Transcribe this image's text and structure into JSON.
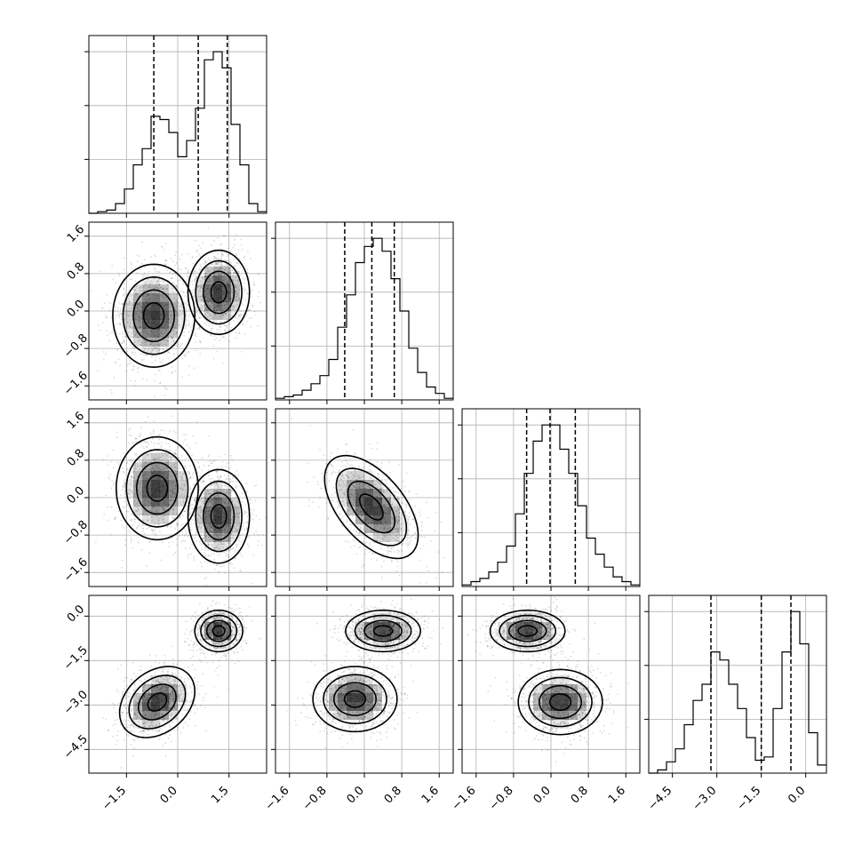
{
  "chart_data": {
    "type": "corner",
    "n_params": 4,
    "parameters": [
      {
        "index": 0,
        "range": [
          -2.6,
          2.6
        ],
        "ticks": [
          -1.5,
          0.0,
          1.5
        ],
        "tick_labels": [
          "−1.5",
          "0.0",
          "1.5"
        ],
        "quantiles": [
          -0.7,
          0.6,
          1.45
        ]
      },
      {
        "index": 1,
        "range": [
          -1.9,
          1.9
        ],
        "ticks": [
          -1.6,
          -0.8,
          0.0,
          0.8,
          1.6
        ],
        "tick_labels": [
          "−1.6",
          "−0.8",
          "0.0",
          "0.8",
          "1.6"
        ],
        "quantiles": [
          -0.42,
          0.16,
          0.64
        ]
      },
      {
        "index": 2,
        "range": [
          -1.9,
          1.9
        ],
        "ticks": [
          -1.6,
          -0.8,
          0.0,
          0.8,
          1.6
        ],
        "tick_labels": [
          "−1.6",
          "−0.8",
          "0.0",
          "0.8",
          "1.6"
        ],
        "quantiles": [
          -0.52,
          -0.02,
          0.52
        ]
      },
      {
        "index": 3,
        "range": [
          -5.3,
          0.7
        ],
        "ticks": [
          -4.5,
          -3.0,
          -1.5,
          0.0
        ],
        "tick_labels": [
          "−4.5",
          "−3.0",
          "−1.5",
          "0.0"
        ],
        "quantiles": [
          -3.2,
          -1.5,
          -0.5
        ]
      }
    ],
    "histograms": [
      {
        "param": 0,
        "bin_edges_from": -2.6,
        "bin_width": 0.26,
        "counts": [
          0,
          1,
          2,
          6,
          15,
          30,
          40,
          60,
          58,
          50,
          35,
          45,
          65,
          95,
          100,
          90,
          55,
          30,
          6,
          1
        ]
      },
      {
        "param": 1,
        "bin_edges_from": -1.9,
        "bin_width": 0.19,
        "counts": [
          1,
          2,
          3,
          6,
          10,
          15,
          25,
          45,
          65,
          85,
          95,
          100,
          92,
          75,
          55,
          32,
          17,
          8,
          4,
          1
        ]
      },
      {
        "param": 2,
        "bin_edges_from": -1.9,
        "bin_width": 0.19,
        "counts": [
          1,
          3,
          5,
          9,
          15,
          25,
          45,
          70,
          90,
          100,
          100,
          85,
          70,
          50,
          30,
          20,
          12,
          6,
          3,
          1
        ]
      },
      {
        "param": 3,
        "bin_edges_from": -5.3,
        "bin_width": 0.3,
        "counts": [
          0,
          2,
          7,
          15,
          30,
          45,
          55,
          75,
          70,
          55,
          40,
          22,
          8,
          10,
          40,
          75,
          100,
          80,
          25,
          5
        ]
      }
    ],
    "pair_panels": [
      {
        "x_param": 0,
        "y_param": 1,
        "modes": [
          {
            "center": [
              -0.7,
              -0.1
            ],
            "sigma": [
              0.6,
              0.55
            ],
            "rho": 0.0
          },
          {
            "center": [
              1.2,
              0.4
            ],
            "sigma": [
              0.45,
              0.45
            ],
            "rho": 0.0
          }
        ]
      },
      {
        "x_param": 0,
        "y_param": 2,
        "modes": [
          {
            "center": [
              -0.6,
              0.2
            ],
            "sigma": [
              0.6,
              0.55
            ],
            "rho": 0.0
          },
          {
            "center": [
              1.2,
              -0.4
            ],
            "sigma": [
              0.45,
              0.5
            ],
            "rho": 0.0
          }
        ]
      },
      {
        "x_param": 1,
        "y_param": 2,
        "modes": [
          {
            "center": [
              0.15,
              -0.2
            ],
            "sigma": [
              0.5,
              0.55
            ],
            "rho": -0.55
          }
        ]
      },
      {
        "x_param": 0,
        "y_param": 3,
        "modes": [
          {
            "center": [
              -0.6,
              -2.9
            ],
            "sigma": [
              0.55,
              0.6
            ],
            "rho": 0.3
          },
          {
            "center": [
              1.2,
              -0.5
            ],
            "sigma": [
              0.35,
              0.35
            ],
            "rho": 0.0
          }
        ]
      },
      {
        "x_param": 1,
        "y_param": 3,
        "modes": [
          {
            "center": [
              -0.2,
              -2.8
            ],
            "sigma": [
              0.45,
              0.55
            ],
            "rho": 0.0
          },
          {
            "center": [
              0.4,
              -0.5
            ],
            "sigma": [
              0.4,
              0.35
            ],
            "rho": 0.0
          }
        ]
      },
      {
        "x_param": 2,
        "y_param": 3,
        "modes": [
          {
            "center": [
              0.2,
              -2.9
            ],
            "sigma": [
              0.45,
              0.55
            ],
            "rho": 0.0
          },
          {
            "center": [
              -0.5,
              -0.5
            ],
            "sigma": [
              0.4,
              0.35
            ],
            "rho": 0.0
          }
        ]
      }
    ],
    "contour_levels_sigma": [
      0.5,
      1.0,
      1.5,
      2.0
    ],
    "grid": true,
    "quantile_line_style": "dashed",
    "title": "",
    "axis_labels": []
  }
}
